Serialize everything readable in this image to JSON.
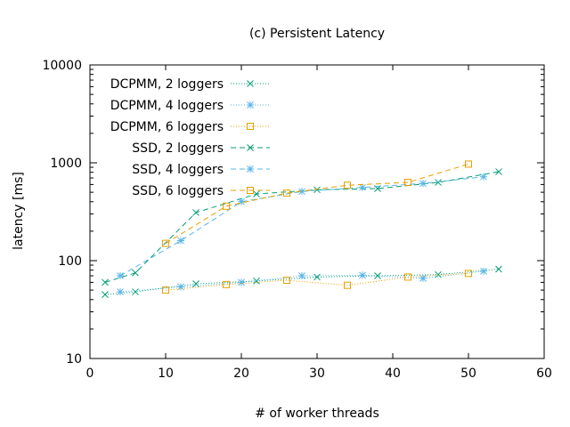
{
  "chart_data": {
    "type": "line",
    "title": "(c) Persistent Latency",
    "xlabel": "# of worker threads",
    "ylabel": "latency [ms]",
    "xlim": [
      0,
      60
    ],
    "ylim": [
      10,
      10000
    ],
    "yscale": "log",
    "x_ticks": [
      "0",
      "10",
      "20",
      "30",
      "40",
      "50",
      "60"
    ],
    "y_ticks": [
      "10",
      "100",
      "1000",
      "10000"
    ],
    "legend_position": "top-left",
    "grid": false,
    "series": [
      {
        "name": "DCPMM, 2 loggers",
        "color": "#009e73",
        "marker": "x",
        "dash": "dotted",
        "points": [
          [
            2,
            45
          ],
          [
            6,
            48
          ],
          [
            14,
            58
          ],
          [
            22,
            62
          ],
          [
            30,
            68
          ],
          [
            38,
            70
          ],
          [
            46,
            72
          ],
          [
            54,
            82
          ]
        ]
      },
      {
        "name": "DCPMM, 4 loggers",
        "color": "#56b4e9",
        "marker": "star",
        "dash": "dotted",
        "points": [
          [
            4,
            48
          ],
          [
            12,
            54
          ],
          [
            20,
            60
          ],
          [
            28,
            70
          ],
          [
            36,
            71
          ],
          [
            44,
            66
          ],
          [
            52,
            78
          ]
        ]
      },
      {
        "name": "DCPMM, 6 loggers",
        "color": "#e69f00",
        "marker": "square",
        "dash": "dotted",
        "points": [
          [
            10,
            50
          ],
          [
            18,
            57
          ],
          [
            26,
            63
          ],
          [
            34,
            56
          ],
          [
            42,
            68
          ],
          [
            50,
            74
          ]
        ]
      },
      {
        "name": "SSD, 2 loggers",
        "color": "#009e73",
        "marker": "x",
        "dash": "dashed",
        "points": [
          [
            2,
            60
          ],
          [
            6,
            75
          ],
          [
            14,
            310
          ],
          [
            22,
            480
          ],
          [
            30,
            530
          ],
          [
            38,
            545
          ],
          [
            46,
            630
          ],
          [
            54,
            810
          ]
        ]
      },
      {
        "name": "SSD, 4 loggers",
        "color": "#56b4e9",
        "marker": "star",
        "dash": "dashed",
        "points": [
          [
            4,
            70
          ],
          [
            12,
            160
          ],
          [
            20,
            400
          ],
          [
            28,
            510
          ],
          [
            36,
            560
          ],
          [
            44,
            615
          ],
          [
            52,
            720
          ]
        ]
      },
      {
        "name": "SSD, 6 loggers",
        "color": "#e69f00",
        "marker": "square",
        "dash": "dashed",
        "points": [
          [
            10,
            150
          ],
          [
            18,
            360
          ],
          [
            26,
            490
          ],
          [
            34,
            590
          ],
          [
            42,
            630
          ],
          [
            50,
            970
          ]
        ]
      }
    ]
  }
}
